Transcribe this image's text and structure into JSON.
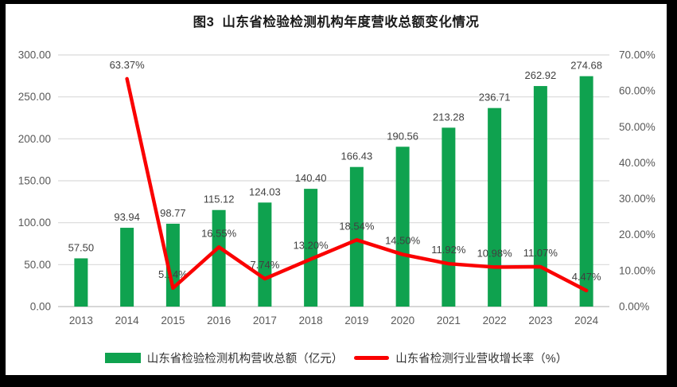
{
  "colors": {
    "bar": "#0FA24F",
    "line": "#FA0000",
    "grid": "#D9D9D9",
    "axis_line": "#BFBFBF",
    "tick_text": "#595959",
    "data_label": "#404040",
    "title_text": "#1A1A1A",
    "legend_text": "#333333",
    "frame": "#000000",
    "background": "#FFFFFF"
  },
  "chart_data": {
    "type": "combo-bar-line",
    "title": "图3  山东省检验检测机构年度营收总额变化情况",
    "categories": [
      "2013",
      "2014",
      "2015",
      "2016",
      "2017",
      "2018",
      "2019",
      "2020",
      "2021",
      "2022",
      "2023",
      "2024"
    ],
    "series": [
      {
        "name": "山东省检验检测机构营收总额（亿元）",
        "type": "bar",
        "axis": "left",
        "color": "#0FA24F",
        "values": [
          57.5,
          93.94,
          98.77,
          115.12,
          124.03,
          140.4,
          166.43,
          190.56,
          213.28,
          236.71,
          262.92,
          274.68
        ],
        "labels": [
          "57.50",
          "93.94",
          "98.77",
          "115.12",
          "124.03",
          "140.40",
          "166.43",
          "190.56",
          "213.28",
          "236.71",
          "262.92",
          "274.68"
        ]
      },
      {
        "name": "山东省检测行业营收增长率（%）",
        "type": "line",
        "axis": "right",
        "color": "#FA0000",
        "values": [
          null,
          63.37,
          5.14,
          16.55,
          7.74,
          13.2,
          18.54,
          14.5,
          11.92,
          10.98,
          11.07,
          4.47
        ],
        "labels": [
          null,
          "63.37%",
          "5.14%",
          "16.55%",
          "7.74%",
          "13.20%",
          "18.54%",
          "14.50%",
          "11.92%",
          "10.98%",
          "11.07%",
          "4.47%"
        ]
      }
    ],
    "left_axis": {
      "min": 0,
      "max": 300,
      "tick_labels": [
        "300.00",
        "250.00",
        "200.00",
        "150.00",
        "100.00",
        "50.00",
        "0.00"
      ]
    },
    "right_axis": {
      "min": 0,
      "max": 70,
      "tick_labels": [
        "70.00%",
        "60.00%",
        "50.00%",
        "40.00%",
        "30.00%",
        "20.00%",
        "10.00%",
        "0.00%"
      ]
    },
    "grid": true,
    "legend_position": "bottom"
  }
}
